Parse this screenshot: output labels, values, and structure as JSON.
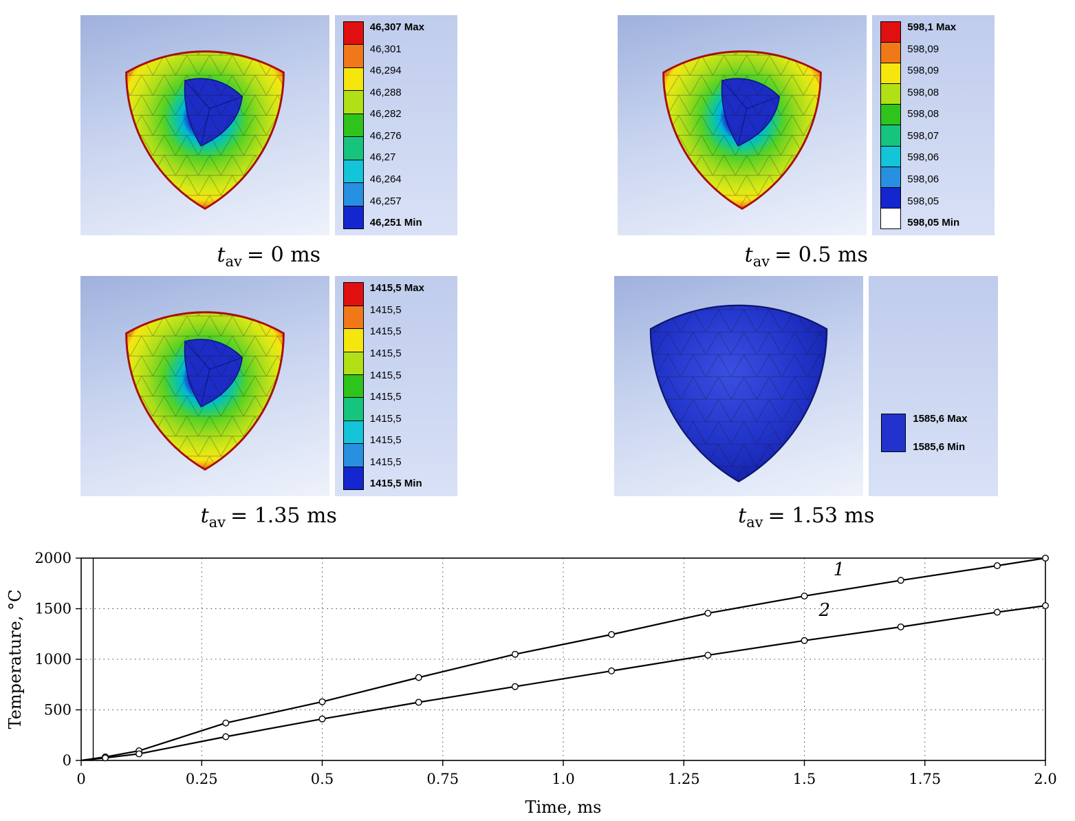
{
  "panels": [
    {
      "id": "tav-0ms",
      "view": "cutaway",
      "caption": {
        "symbol": "t",
        "subscript": "av",
        "rest": "= 0 ms"
      },
      "legend": {
        "labels": [
          "46,307 Max",
          "46,301",
          "46,294",
          "46,288",
          "46,282",
          "46,276",
          "46,27",
          "46,264",
          "46,257",
          "46,251 Min"
        ],
        "colors": [
          "#e01010",
          "#f07818",
          "#f5e60e",
          "#b2e016",
          "#2fc41c",
          "#17c47e",
          "#14c4d8",
          "#2790e0",
          "#1426d0"
        ],
        "white_band": false,
        "single_swatch": false
      }
    },
    {
      "id": "tav-0.5ms",
      "view": "cutaway",
      "caption": {
        "symbol": "t",
        "subscript": "av",
        "rest": "= 0.5 ms"
      },
      "legend": {
        "labels": [
          "598,1 Max",
          "598,09",
          "598,09",
          "598,08",
          "598,08",
          "598,07",
          "598,06",
          "598,06",
          "598,05",
          "598,05 Min"
        ],
        "colors": [
          "#e01010",
          "#f07818",
          "#f5e60e",
          "#b2e016",
          "#2fc41c",
          "#17c47e",
          "#14c4d8",
          "#2790e0",
          "#1426d0"
        ],
        "white_band": true,
        "single_swatch": false
      }
    },
    {
      "id": "tav-1.35ms",
      "view": "cutaway",
      "caption": {
        "symbol": "t",
        "subscript": "av",
        "rest": "= 1.35 ms"
      },
      "legend": {
        "labels": [
          "1415,5 Max",
          "1415,5",
          "1415,5",
          "1415,5",
          "1415,5",
          "1415,5",
          "1415,5",
          "1415,5",
          "1415,5",
          "1415,5 Min"
        ],
        "colors": [
          "#e01010",
          "#f07818",
          "#f5e60e",
          "#b2e016",
          "#2fc41c",
          "#17c47e",
          "#14c4d8",
          "#2790e0",
          "#1426d0"
        ],
        "white_band": false,
        "single_swatch": false
      }
    },
    {
      "id": "tav-1.53ms",
      "view": "solid",
      "caption": {
        "symbol": "t",
        "subscript": "av",
        "rest": "= 1.53 ms"
      },
      "legend": {
        "labels": [
          "1585,6 Max",
          "1585,6 Min"
        ],
        "colors": [
          "#2133cc"
        ],
        "white_band": false,
        "single_swatch": true
      }
    }
  ],
  "chart_data": {
    "type": "line",
    "title": "",
    "xlabel": "Time, ms",
    "ylabel": "Temperature, °C",
    "xlim": [
      0,
      2.0
    ],
    "ylim": [
      0,
      2000
    ],
    "xticks": [
      0,
      0.25,
      0.5,
      0.75,
      1.0,
      1.25,
      1.5,
      1.75,
      2.0
    ],
    "xtick_labels": [
      "0",
      "0.25",
      "0.5",
      "0.75",
      "1.0",
      "1.25",
      "1.5",
      "1.75",
      "2.0"
    ],
    "yticks": [
      0,
      500,
      1000,
      1500,
      2000
    ],
    "ytick_labels": [
      "0",
      "500",
      "1000",
      "1500",
      "2000"
    ],
    "grid": true,
    "legend_position": "none",
    "vline_x": 0.025,
    "series": [
      {
        "name": "1",
        "label_pos": {
          "x": 1.56,
          "y": 1830
        },
        "x": [
          0,
          0.05,
          0.12,
          0.3,
          0.5,
          0.7,
          0.9,
          1.1,
          1.3,
          1.5,
          1.7,
          1.9,
          2.0
        ],
        "y": [
          0,
          35,
          95,
          370,
          580,
          820,
          1050,
          1245,
          1455,
          1625,
          1780,
          1925,
          2000
        ]
      },
      {
        "name": "2",
        "label_pos": {
          "x": 1.53,
          "y": 1430
        },
        "x": [
          0,
          0.05,
          0.12,
          0.3,
          0.5,
          0.7,
          0.9,
          1.1,
          1.3,
          1.5,
          1.7,
          1.9,
          2.0
        ],
        "y": [
          0,
          25,
          65,
          235,
          410,
          575,
          730,
          885,
          1040,
          1185,
          1320,
          1465,
          1530
        ]
      }
    ]
  }
}
